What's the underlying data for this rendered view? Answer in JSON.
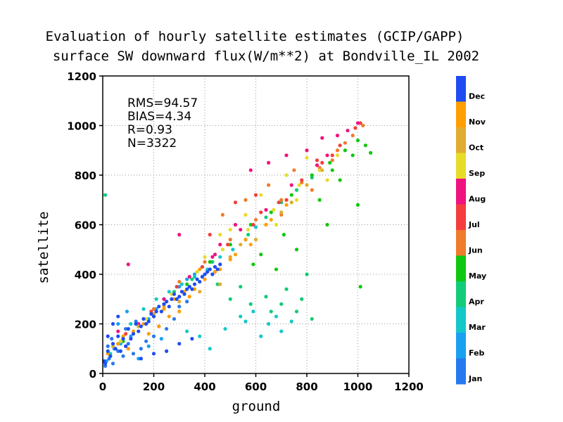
{
  "chart_data": {
    "type": "scatter",
    "title": "Evaluation of hourly satellite estimates (GCIP/GAPP)",
    "subtitle": "surface SW downward flux(W/m**2) at Bondville_IL 2002",
    "xlabel": "ground",
    "ylabel": "satellite",
    "xlim": [
      0,
      1200
    ],
    "ylim": [
      0,
      1200
    ],
    "xticks": [
      "0",
      "200",
      "400",
      "600",
      "800",
      "1000",
      "1200"
    ],
    "yticks": [
      "0",
      "200",
      "400",
      "600",
      "800",
      "1000",
      "1200"
    ],
    "grid": true,
    "stats": [
      "RMS=94.57",
      "BIAS=4.34",
      "R=0.93",
      "N=3322"
    ],
    "colorbar": {
      "labels": [
        "Dec",
        "Nov",
        "Oct",
        "Sep",
        "Aug",
        "Jul",
        "Jun",
        "May",
        "Apr",
        "Mar",
        "Feb",
        "Jan"
      ],
      "colors": [
        "#1f4cf2",
        "#ff9e00",
        "#e0ac30",
        "#e8dc28",
        "#f0127f",
        "#f53d3d",
        "#f07b2c",
        "#10c810",
        "#12cc78",
        "#14c8c8",
        "#1aa0f0",
        "#2878f0"
      ]
    },
    "series": [
      {
        "month": "Jan",
        "points": [
          [
            10,
            30
          ],
          [
            25,
            60
          ],
          [
            40,
            40
          ],
          [
            60,
            90
          ],
          [
            80,
            70
          ],
          [
            100,
            120
          ],
          [
            120,
            80
          ],
          [
            150,
            100
          ],
          [
            170,
            130
          ],
          [
            200,
            150
          ],
          [
            220,
            190
          ],
          [
            250,
            180
          ],
          [
            280,
            220
          ],
          [
            300,
            270
          ],
          [
            330,
            290
          ],
          [
            20,
            110
          ],
          [
            35,
            140
          ],
          [
            90,
            180
          ],
          [
            130,
            210
          ]
        ]
      },
      {
        "month": "Feb",
        "points": [
          [
            15,
            50
          ],
          [
            45,
            100
          ],
          [
            70,
            120
          ],
          [
            110,
            150
          ],
          [
            140,
            190
          ],
          [
            180,
            220
          ],
          [
            210,
            260
          ],
          [
            240,
            300
          ],
          [
            270,
            320
          ],
          [
            300,
            350
          ],
          [
            330,
            380
          ],
          [
            360,
            400
          ],
          [
            390,
            430
          ],
          [
            60,
            200
          ],
          [
            95,
            250
          ],
          [
            180,
            110
          ],
          [
            140,
            60
          ],
          [
            230,
            140
          ]
        ]
      },
      {
        "month": "Mar",
        "points": [
          [
            30,
            80
          ],
          [
            60,
            120
          ],
          [
            110,
            200
          ],
          [
            160,
            260
          ],
          [
            210,
            300
          ],
          [
            260,
            330
          ],
          [
            310,
            360
          ],
          [
            360,
            390
          ],
          [
            410,
            420
          ],
          [
            460,
            470
          ],
          [
            510,
            500
          ],
          [
            560,
            540
          ],
          [
            600,
            590
          ],
          [
            480,
            180
          ],
          [
            540,
            230
          ],
          [
            590,
            250
          ],
          [
            650,
            200
          ],
          [
            700,
            170
          ],
          [
            420,
            100
          ],
          [
            380,
            150
          ],
          [
            330,
            170
          ],
          [
            620,
            150
          ],
          [
            560,
            210
          ],
          [
            680,
            230
          ],
          [
            740,
            210
          ]
        ]
      },
      {
        "month": "Apr",
        "points": [
          [
            50,
            100
          ],
          [
            120,
            170
          ],
          [
            200,
            240
          ],
          [
            280,
            330
          ],
          [
            350,
            380
          ],
          [
            430,
            450
          ],
          [
            500,
            520
          ],
          [
            570,
            560
          ],
          [
            640,
            630
          ],
          [
            700,
            690
          ],
          [
            760,
            740
          ],
          [
            820,
            790
          ],
          [
            500,
            300
          ],
          [
            580,
            280
          ],
          [
            640,
            310
          ],
          [
            700,
            280
          ],
          [
            760,
            250
          ],
          [
            820,
            220
          ],
          [
            450,
            360
          ],
          [
            720,
            340
          ],
          [
            800,
            400
          ],
          [
            660,
            250
          ],
          [
            540,
            350
          ],
          [
            780,
            300
          ],
          [
            10,
            720
          ]
        ]
      },
      {
        "month": "May",
        "points": [
          [
            80,
            130
          ],
          [
            160,
            220
          ],
          [
            240,
            280
          ],
          [
            330,
            360
          ],
          [
            420,
            450
          ],
          [
            500,
            520
          ],
          [
            580,
            600
          ],
          [
            660,
            650
          ],
          [
            740,
            720
          ],
          [
            820,
            800
          ],
          [
            890,
            850
          ],
          [
            950,
            900
          ],
          [
            1000,
            940
          ],
          [
            1030,
            920
          ],
          [
            1050,
            890
          ],
          [
            980,
            880
          ],
          [
            1000,
            680
          ],
          [
            900,
            820
          ],
          [
            850,
            700
          ],
          [
            930,
            780
          ],
          [
            760,
            500
          ],
          [
            680,
            420
          ],
          [
            880,
            600
          ],
          [
            1010,
            350
          ],
          [
            620,
            480
          ],
          [
            710,
            560
          ],
          [
            590,
            440
          ]
        ]
      },
      {
        "month": "Jun",
        "points": [
          [
            100,
            180
          ],
          [
            200,
            260
          ],
          [
            300,
            370
          ],
          [
            400,
            450
          ],
          [
            500,
            540
          ],
          [
            600,
            620
          ],
          [
            700,
            700
          ],
          [
            780,
            770
          ],
          [
            850,
            830
          ],
          [
            920,
            900
          ],
          [
            980,
            960
          ],
          [
            1020,
            1000
          ],
          [
            650,
            760
          ],
          [
            560,
            700
          ],
          [
            470,
            640
          ],
          [
            700,
            640
          ],
          [
            820,
            740
          ],
          [
            900,
            860
          ],
          [
            950,
            930
          ],
          [
            750,
            820
          ]
        ]
      },
      {
        "month": "Jul",
        "points": [
          [
            90,
            160
          ],
          [
            190,
            250
          ],
          [
            290,
            350
          ],
          [
            390,
            430
          ],
          [
            490,
            520
          ],
          [
            590,
            600
          ],
          [
            690,
            690
          ],
          [
            780,
            780
          ],
          [
            860,
            850
          ],
          [
            930,
            920
          ],
          [
            990,
            990
          ],
          [
            1010,
            1010
          ],
          [
            520,
            690
          ],
          [
            420,
            560
          ],
          [
            620,
            650
          ],
          [
            720,
            700
          ],
          [
            840,
            860
          ],
          [
            900,
            880
          ],
          [
            600,
            720
          ]
        ]
      },
      {
        "month": "Aug",
        "points": [
          [
            60,
            170
          ],
          [
            140,
            200
          ],
          [
            240,
            300
          ],
          [
            340,
            390
          ],
          [
            440,
            480
          ],
          [
            540,
            580
          ],
          [
            640,
            660
          ],
          [
            740,
            760
          ],
          [
            840,
            840
          ],
          [
            880,
            880
          ],
          [
            920,
            960
          ],
          [
            960,
            980
          ],
          [
            1000,
            1010
          ],
          [
            580,
            820
          ],
          [
            650,
            850
          ],
          [
            720,
            880
          ],
          [
            520,
            600
          ],
          [
            430,
            470
          ],
          [
            800,
            900
          ],
          [
            860,
            950
          ],
          [
            100,
            440
          ],
          [
            300,
            560
          ],
          [
            460,
            520
          ]
        ]
      },
      {
        "month": "Sep",
        "points": [
          [
            70,
            130
          ],
          [
            170,
            220
          ],
          [
            270,
            320
          ],
          [
            370,
            410
          ],
          [
            470,
            500
          ],
          [
            570,
            580
          ],
          [
            670,
            660
          ],
          [
            770,
            760
          ],
          [
            850,
            820
          ],
          [
            920,
            880
          ],
          [
            560,
            640
          ],
          [
            460,
            560
          ],
          [
            620,
            720
          ],
          [
            720,
            800
          ],
          [
            800,
            870
          ],
          [
            680,
            600
          ],
          [
            880,
            780
          ],
          [
            500,
            580
          ],
          [
            400,
            470
          ],
          [
            760,
            700
          ]
        ]
      },
      {
        "month": "Oct",
        "points": [
          [
            40,
            110
          ],
          [
            140,
            190
          ],
          [
            240,
            270
          ],
          [
            340,
            350
          ],
          [
            440,
            430
          ],
          [
            540,
            520
          ],
          [
            640,
            600
          ],
          [
            740,
            690
          ],
          [
            800,
            760
          ],
          [
            860,
            820
          ],
          [
            500,
            470
          ],
          [
            460,
            360
          ],
          [
            600,
            540
          ],
          [
            700,
            650
          ],
          [
            380,
            330
          ],
          [
            300,
            290
          ],
          [
            200,
            240
          ]
        ]
      },
      {
        "month": "Nov",
        "points": [
          [
            20,
            80
          ],
          [
            80,
            150
          ],
          [
            160,
            200
          ],
          [
            240,
            260
          ],
          [
            320,
            330
          ],
          [
            400,
            380
          ],
          [
            460,
            420
          ],
          [
            520,
            480
          ],
          [
            580,
            520
          ],
          [
            640,
            600
          ],
          [
            120,
            170
          ],
          [
            200,
            230
          ],
          [
            280,
            300
          ],
          [
            360,
            340
          ],
          [
            440,
            410
          ],
          [
            260,
            230
          ],
          [
            340,
            310
          ],
          [
            180,
            160
          ],
          [
            60,
            120
          ],
          [
            100,
            100
          ],
          [
            380,
            420
          ],
          [
            500,
            460
          ],
          [
            560,
            540
          ],
          [
            660,
            620
          ],
          [
            720,
            680
          ],
          [
            300,
            250
          ],
          [
            220,
            190
          ]
        ]
      },
      {
        "month": "Dec",
        "points": [
          [
            5,
            50
          ],
          [
            20,
            90
          ],
          [
            40,
            120
          ],
          [
            60,
            150
          ],
          [
            80,
            140
          ],
          [
            100,
            180
          ],
          [
            130,
            200
          ],
          [
            160,
            220
          ],
          [
            190,
            240
          ],
          [
            220,
            270
          ],
          [
            250,
            290
          ],
          [
            280,
            320
          ],
          [
            310,
            330
          ],
          [
            340,
            350
          ],
          [
            370,
            380
          ],
          [
            400,
            400
          ],
          [
            420,
            420
          ],
          [
            440,
            430
          ],
          [
            460,
            440
          ],
          [
            30,
            70
          ],
          [
            50,
            100
          ],
          [
            90,
            110
          ],
          [
            120,
            160
          ],
          [
            150,
            190
          ],
          [
            180,
            210
          ],
          [
            210,
            250
          ],
          [
            240,
            280
          ],
          [
            270,
            300
          ],
          [
            300,
            310
          ],
          [
            330,
            340
          ],
          [
            360,
            360
          ],
          [
            390,
            390
          ],
          [
            410,
            410
          ],
          [
            430,
            400
          ],
          [
            450,
            420
          ],
          [
            10,
            40
          ],
          [
            70,
            90
          ],
          [
            110,
            140
          ],
          [
            140,
            170
          ],
          [
            170,
            200
          ],
          [
            200,
            230
          ],
          [
            230,
            250
          ],
          [
            260,
            270
          ],
          [
            290,
            300
          ],
          [
            320,
            320
          ],
          [
            350,
            340
          ],
          [
            380,
            370
          ],
          [
            150,
            60
          ],
          [
            200,
            80
          ],
          [
            250,
            90
          ],
          [
            300,
            120
          ],
          [
            350,
            140
          ],
          [
            20,
            150
          ],
          [
            40,
            200
          ],
          [
            60,
            230
          ]
        ]
      }
    ]
  }
}
